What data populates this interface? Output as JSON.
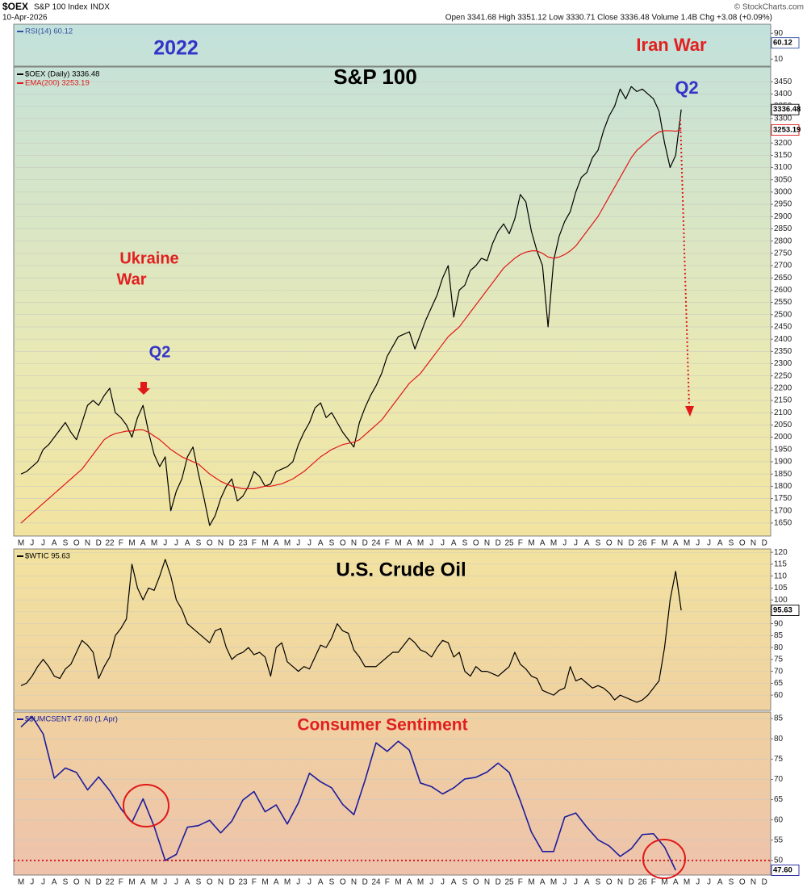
{
  "header": {
    "symbol": "$OEX",
    "name": "S&P 100 Index",
    "exchange": "INDX",
    "date": "10-Apr-2026",
    "quote": "Open 3341.68 High 3351.12 Low 3330.71 Close 3336.48 Volume 1.4B Chg +3.08 (+0.09%)",
    "credit": "© StockCharts.com"
  },
  "chart_data": [
    {
      "type": "line",
      "series": [
        {
          "name": "RSI(14) 60.12",
          "color": "#3050a0",
          "last_value": 60.12
        }
      ],
      "ylim": [
        -12,
        118
      ],
      "yticks": [
        10,
        90
      ],
      "grid": false
    },
    {
      "type": "line",
      "title": "S&P 100",
      "title_color": "#000000",
      "annotations": [
        {
          "text": "2022",
          "color": "#3434c8"
        },
        {
          "text": "Iran War",
          "color": "#e02020"
        },
        {
          "text": "Q2",
          "color": "#3434c8"
        },
        {
          "text": "Ukraine",
          "color": "#e02020"
        },
        {
          "text": "War",
          "color": "#e02020"
        },
        {
          "text": "Q2",
          "color": "#3434c8"
        }
      ],
      "categories": [
        "M",
        null,
        "J",
        null,
        "J",
        null,
        "A",
        null,
        "S",
        null,
        "O",
        null,
        "N",
        null,
        "D",
        null,
        "22",
        null,
        "F",
        null,
        "M",
        null,
        "A",
        null,
        "M",
        null,
        "J",
        null,
        "J",
        null,
        "A",
        null,
        "S",
        null,
        "O",
        null,
        "N",
        null,
        "D",
        null,
        "23",
        null,
        "F",
        null,
        "M",
        null,
        "A",
        null,
        "M",
        null,
        "J",
        null,
        "J",
        null,
        "A",
        null,
        "S",
        null,
        "O",
        null,
        "N",
        null,
        "D",
        null,
        "24",
        null,
        "F",
        null,
        "M",
        null,
        "A",
        null,
        "M",
        null,
        "J",
        null,
        "J",
        null,
        "A",
        null,
        "S",
        null,
        "O",
        null,
        "N",
        null,
        "D",
        null,
        "25",
        null,
        "F",
        null,
        "M",
        null,
        "A",
        null,
        "M",
        null,
        "J",
        null,
        "J",
        null,
        "A",
        null,
        "S",
        null,
        "O",
        null,
        "N",
        null,
        "D",
        null,
        "26",
        null,
        "F",
        null,
        "M",
        null,
        "A",
        null,
        "M",
        null,
        "J",
        null,
        "J",
        null,
        "A",
        null,
        "S",
        null,
        "O",
        null,
        "N",
        null,
        "D",
        null
      ],
      "series": [
        {
          "name": "$OEX (Daily) 3336.48",
          "color": "#000000",
          "last_value": 3336.48,
          "values": [
            1850,
            1860,
            1880,
            1900,
            1950,
            1970,
            2000,
            2030,
            2060,
            2020,
            1990,
            2060,
            2130,
            2150,
            2130,
            2170,
            2200,
            2100,
            2080,
            2050,
            2000,
            2080,
            2130,
            2020,
            1930,
            1880,
            1920,
            1700,
            1780,
            1830,
            1920,
            1960,
            1850,
            1750,
            1640,
            1680,
            1750,
            1800,
            1830,
            1740,
            1760,
            1800,
            1860,
            1840,
            1800,
            1810,
            1860,
            1870,
            1880,
            1900,
            1970,
            2020,
            2060,
            2120,
            2140,
            2080,
            2100,
            2060,
            2020,
            1990,
            1960,
            2060,
            2120,
            2170,
            2210,
            2260,
            2330,
            2370,
            2410,
            2420,
            2430,
            2360,
            2420,
            2480,
            2530,
            2580,
            2650,
            2700,
            2490,
            2600,
            2620,
            2680,
            2700,
            2730,
            2720,
            2790,
            2840,
            2870,
            2830,
            2890,
            2990,
            2960,
            2840,
            2760,
            2700,
            2450,
            2720,
            2820,
            2880,
            2920,
            3000,
            3060,
            3080,
            3140,
            3170,
            3250,
            3310,
            3350,
            3420,
            3380,
            3430,
            3410,
            3420,
            3400,
            3380,
            3330,
            3200,
            3100,
            3150,
            3336.48,
            null,
            null,
            null,
            null,
            null,
            null,
            null,
            null,
            null,
            null,
            null,
            null,
            null,
            null,
            null,
            null
          ]
        },
        {
          "name": "EMA(200) 3253.19",
          "color": "#e01818",
          "last_value": 3253.19,
          "values": [
            1650,
            1670,
            1690,
            1710,
            1730,
            1750,
            1770,
            1790,
            1810,
            1830,
            1850,
            1870,
            1900,
            1930,
            1960,
            1990,
            2005,
            2015,
            2020,
            2025,
            2025,
            2030,
            2030,
            2020,
            2005,
            1990,
            1970,
            1950,
            1935,
            1920,
            1910,
            1900,
            1890,
            1870,
            1850,
            1835,
            1820,
            1810,
            1800,
            1795,
            1790,
            1790,
            1790,
            1795,
            1800,
            1800,
            1805,
            1810,
            1820,
            1830,
            1845,
            1860,
            1880,
            1900,
            1920,
            1935,
            1950,
            1960,
            1970,
            1975,
            1980,
            1990,
            2010,
            2030,
            2050,
            2070,
            2100,
            2130,
            2160,
            2190,
            2220,
            2240,
            2260,
            2290,
            2320,
            2350,
            2380,
            2410,
            2430,
            2450,
            2480,
            2510,
            2540,
            2570,
            2600,
            2630,
            2660,
            2690,
            2710,
            2730,
            2745,
            2755,
            2760,
            2760,
            2750,
            2735,
            2730,
            2735,
            2745,
            2760,
            2780,
            2810,
            2840,
            2870,
            2900,
            2940,
            2980,
            3020,
            3060,
            3100,
            3140,
            3170,
            3190,
            3210,
            3230,
            3245,
            3250,
            3250,
            3248,
            3253.19,
            null,
            null,
            null,
            null,
            null,
            null,
            null,
            null,
            null,
            null,
            null,
            null,
            null,
            null,
            null,
            null
          ]
        }
      ],
      "ylim": [
        1597,
        3510
      ],
      "yticks": [
        1650,
        1700,
        1750,
        1800,
        1850,
        1900,
        1950,
        2000,
        2050,
        2100,
        2150,
        2200,
        2250,
        2300,
        2350,
        2400,
        2450,
        2500,
        2550,
        2600,
        2650,
        2700,
        2750,
        2800,
        2850,
        2900,
        2950,
        3000,
        3050,
        3100,
        3150,
        3200,
        3250,
        3300,
        3350,
        3400,
        3450
      ],
      "grid": true
    },
    {
      "type": "line",
      "title": "U.S. Crude Oil",
      "title_color": "#000000",
      "series": [
        {
          "name": "$WTIC 95.63",
          "color": "#000000",
          "last_value": 95.63,
          "values": [
            64,
            65,
            68,
            72,
            75,
            72,
            68,
            67,
            71,
            73,
            78,
            83,
            81,
            78,
            67,
            72,
            76,
            85,
            88,
            92,
            115,
            105,
            100,
            105,
            104,
            110,
            117,
            110,
            100,
            96,
            90,
            88,
            86,
            84,
            82,
            87,
            88,
            80,
            75,
            77,
            78,
            80,
            77,
            78,
            76,
            68,
            80,
            82,
            74,
            72,
            70,
            72,
            71,
            76,
            81,
            80,
            84,
            90,
            87,
            86,
            79,
            76,
            72,
            72,
            72,
            74,
            76,
            78,
            78,
            81,
            84,
            82,
            79,
            78,
            76,
            80,
            83,
            82,
            76,
            78,
            70,
            68,
            72,
            70,
            70,
            69,
            68,
            70,
            72,
            78,
            73,
            71,
            68,
            67,
            62,
            61,
            60,
            62,
            63,
            72,
            66,
            67,
            65,
            63,
            64,
            63,
            61,
            58,
            60,
            59,
            58,
            57,
            58,
            60,
            63,
            66,
            80,
            100,
            112,
            95.63,
            null,
            null,
            null,
            null,
            null,
            null,
            null,
            null,
            null,
            null,
            null,
            null,
            null,
            null,
            null,
            null
          ]
        }
      ],
      "ylim": [
        53.6,
        121.4
      ],
      "yticks": [
        60,
        65,
        70,
        75,
        80,
        85,
        90,
        95,
        100,
        105,
        110,
        115,
        120
      ],
      "grid": true
    },
    {
      "type": "line",
      "title": "Consumer Sentiment",
      "title_color": "#e02020",
      "categories": [
        "M",
        "J",
        "J",
        "A",
        "S",
        "O",
        "N",
        "D",
        "22",
        "F",
        "M",
        "A",
        "M",
        "J",
        "J",
        "A",
        "S",
        "O",
        "N",
        "D",
        "23",
        "F",
        "M",
        "A",
        "M",
        "J",
        "J",
        "A",
        "S",
        "O",
        "N",
        "D",
        "24",
        "F",
        "M",
        "A",
        "M",
        "J",
        "J",
        "A",
        "S",
        "O",
        "N",
        "D",
        "25",
        "F",
        "M",
        "A",
        "M",
        "J",
        "J",
        "A",
        "S",
        "O",
        "N",
        "D",
        "26",
        "F",
        "M",
        "A",
        "M",
        "J",
        "J",
        "A",
        "S",
        "O",
        "N",
        "D"
      ],
      "series": [
        {
          "name": "$$UMCSENT 47.60 (1 Apr)",
          "color": "#1c1c9c",
          "last_value": 47.6,
          "last_value_label": "47.60",
          "values": [
            82.9,
            85.5,
            81.2,
            70.3,
            72.8,
            71.7,
            67.4,
            70.6,
            67.2,
            62.8,
            59.4,
            65.2,
            58.4,
            50.0,
            51.5,
            58.2,
            58.6,
            59.9,
            56.8,
            59.7,
            64.9,
            67.0,
            62.0,
            63.7,
            59.0,
            64.2,
            71.5,
            69.4,
            67.9,
            63.8,
            61.3,
            69.7,
            79.0,
            76.9,
            79.4,
            77.2,
            69.1,
            68.2,
            66.4,
            67.9,
            70.1,
            70.5,
            71.8,
            74.0,
            71.7,
            64.7,
            57.0,
            52.2,
            52.2,
            60.7,
            61.7,
            58.2,
            55.1,
            53.6,
            51.0,
            52.9,
            56.4,
            56.6,
            53.3,
            47.6,
            null,
            null,
            null,
            null,
            null,
            null,
            null,
            null
          ]
        }
      ],
      "ylim": [
        46.4,
        86.6
      ],
      "yticks": [
        50,
        55,
        60,
        65,
        70,
        75,
        80,
        85
      ],
      "grid": true,
      "reference_line": 50
    }
  ]
}
